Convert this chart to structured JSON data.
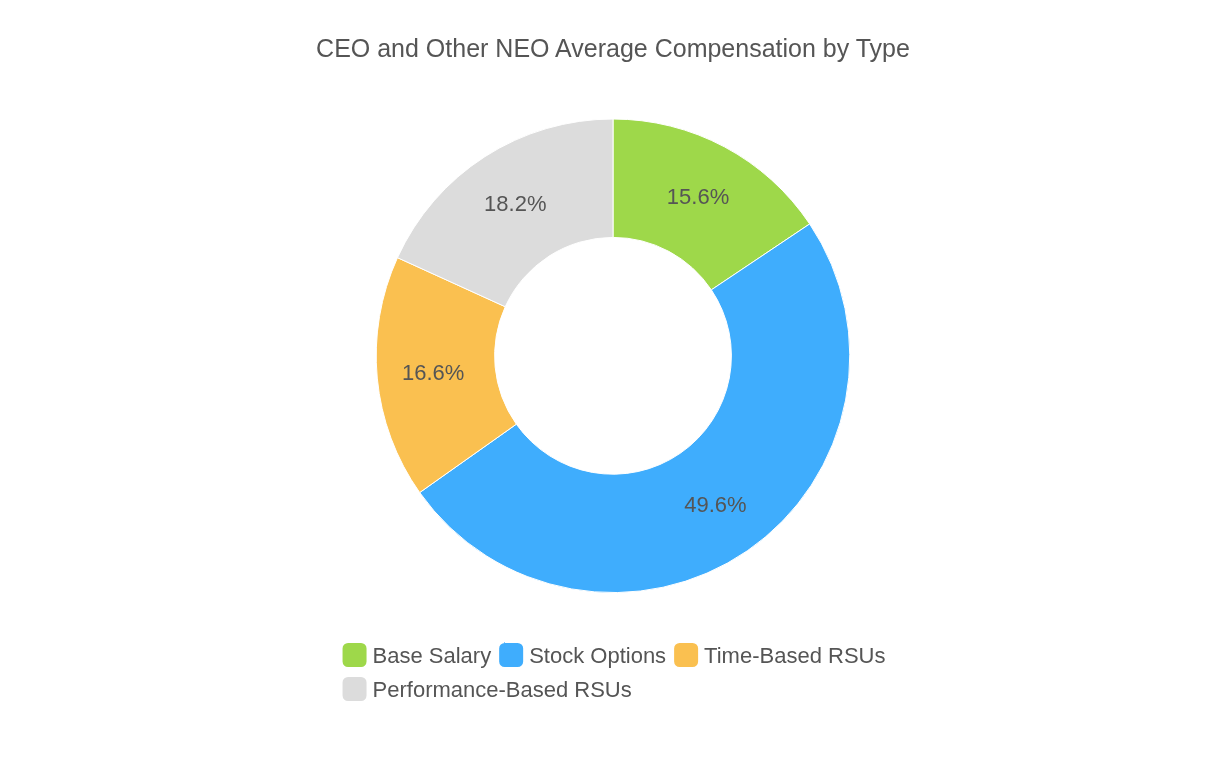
{
  "chart_data": {
    "type": "donut",
    "title": "CEO and Other NEO Average Compensation by Type",
    "categories": [
      "Base Salary",
      "Stock Options",
      "Time-Based RSUs",
      "Performance-Based RSUs"
    ],
    "values": [
      15.6,
      49.6,
      16.6,
      18.2
    ],
    "value_labels": [
      "15.6%",
      "49.6%",
      "16.6%",
      "18.2%"
    ],
    "colors": [
      "#9ed84a",
      "#3fadfd",
      "#fac050",
      "#dcdcdc"
    ],
    "legend": "bottom"
  }
}
